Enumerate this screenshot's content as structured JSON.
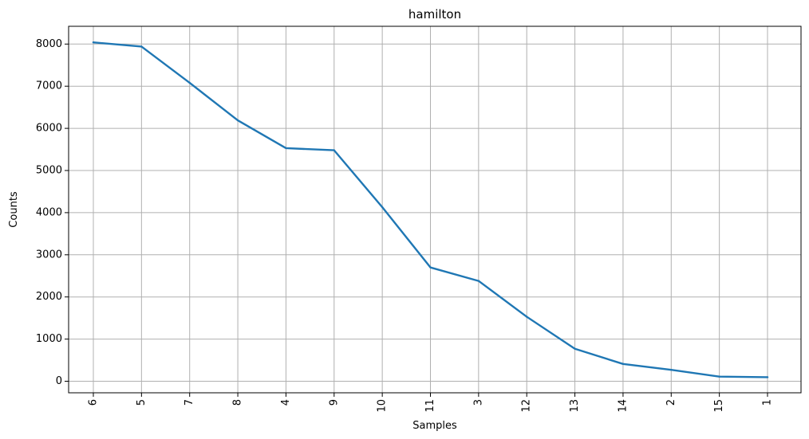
{
  "chart_data": {
    "type": "line",
    "title": "hamilton",
    "xlabel": "Samples",
    "ylabel": "Counts",
    "categories": [
      "6",
      "5",
      "7",
      "8",
      "4",
      "9",
      "10",
      "11",
      "3",
      "12",
      "13",
      "14",
      "2",
      "15",
      "1"
    ],
    "values": [
      8040,
      7940,
      7080,
      6190,
      5530,
      5480,
      4130,
      2700,
      2380,
      1530,
      770,
      410,
      270,
      110,
      95
    ],
    "ylim": [
      -300,
      8400
    ],
    "yticks": [
      0,
      1000,
      2000,
      3000,
      4000,
      5000,
      6000,
      7000,
      8000
    ],
    "grid": true,
    "x_tick_rotation": 90,
    "line_color": "#1f77b4",
    "grid_color": "#b0b0b0"
  }
}
